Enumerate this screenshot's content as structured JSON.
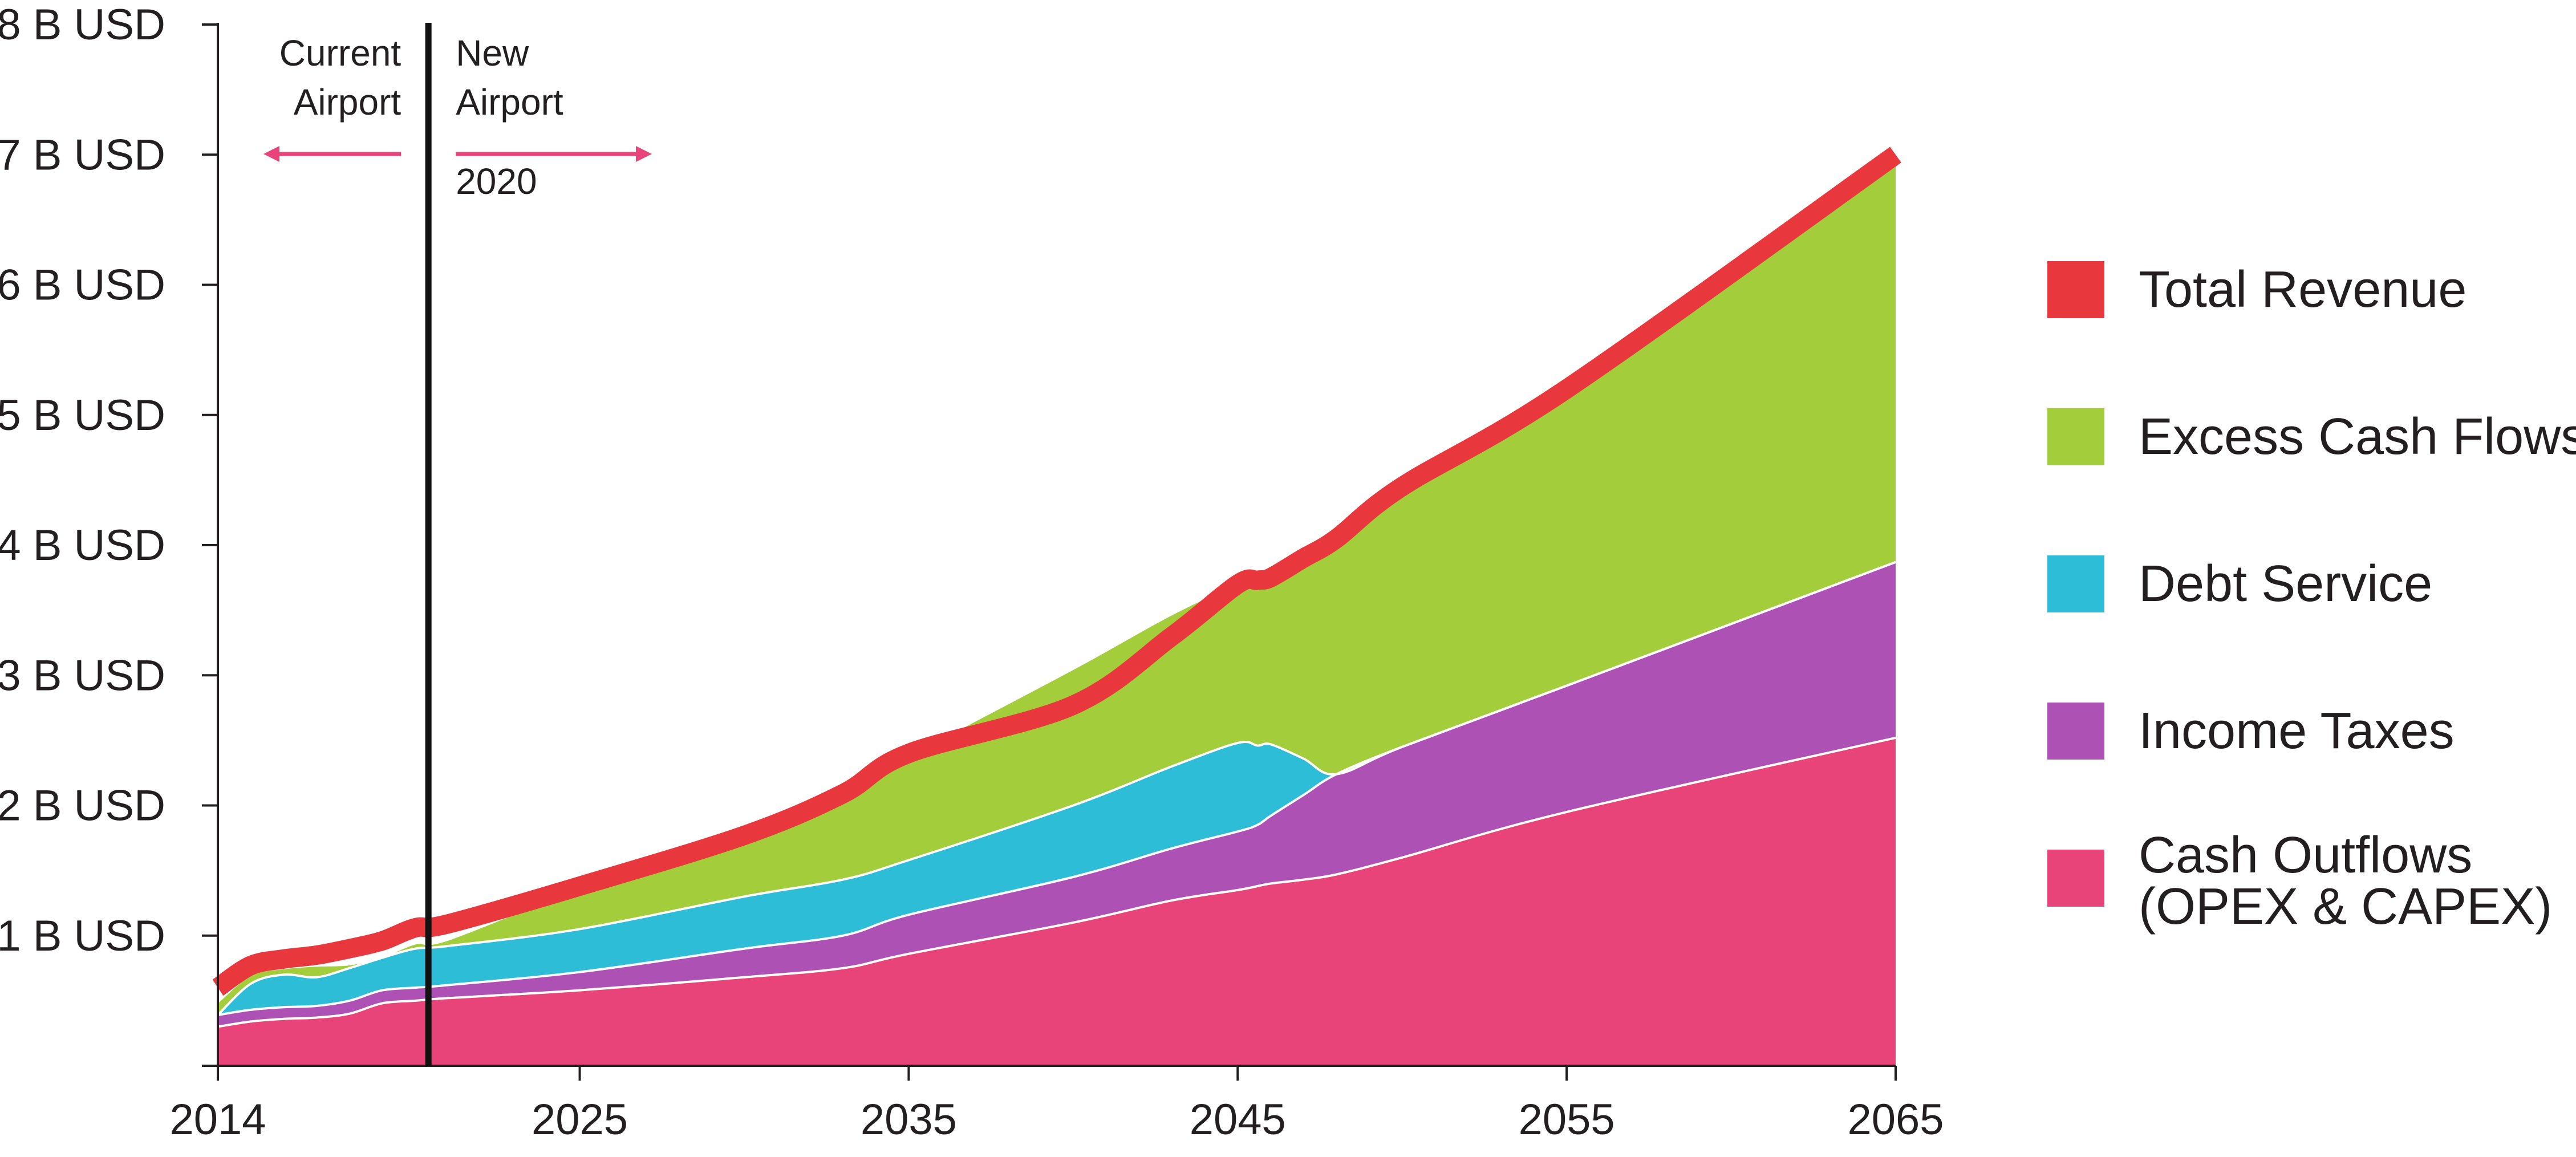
{
  "chart_data": {
    "type": "area",
    "x_ticks": [
      "2014",
      "2025",
      "2035",
      "2045",
      "2055",
      "2065"
    ],
    "y_ticks": [
      "1 B USD",
      "2 B USD",
      "3 B USD",
      "4 B USD",
      "5 B USD",
      "6 B USD",
      "7 B USD",
      "8 B USD"
    ],
    "xlim": [
      2014,
      2065
    ],
    "ylim": [
      0,
      8
    ],
    "x": [
      2014,
      2015,
      2016,
      2017,
      2018,
      2019,
      2020,
      2021,
      2025,
      2030,
      2033,
      2035,
      2040,
      2043,
      2045,
      2045.6,
      2046,
      2047,
      2048,
      2050,
      2055,
      2065
    ],
    "series": [
      {
        "name": "Cash Outflows (OPEX & CAPEX)",
        "color": "#e8447a",
        "values": [
          0.3,
          0.34,
          0.36,
          0.37,
          0.4,
          0.48,
          0.5,
          0.52,
          0.58,
          0.68,
          0.75,
          0.86,
          1.1,
          1.27,
          1.35,
          1.38,
          1.4,
          1.43,
          1.47,
          1.6,
          1.95,
          2.52
        ]
      },
      {
        "name": "Income Taxes",
        "color": "#ae51b4",
        "values": [
          0.09,
          0.09,
          0.09,
          0.09,
          0.1,
          0.1,
          0.1,
          0.1,
          0.14,
          0.22,
          0.25,
          0.3,
          0.35,
          0.4,
          0.45,
          0.47,
          0.52,
          0.65,
          0.77,
          0.85,
          0.97,
          1.35
        ]
      },
      {
        "name": "Debt Service",
        "color": "#2ebdd7",
        "values": [
          0.0,
          0.2,
          0.25,
          0.22,
          0.25,
          0.25,
          0.3,
          0.3,
          0.33,
          0.4,
          0.43,
          0.42,
          0.55,
          0.63,
          0.68,
          0.61,
          0.55,
          0.28,
          0.0,
          0.0,
          0.0,
          0.0
        ]
      },
      {
        "name": "Excess Cash Flows",
        "color": "#a3cd3b",
        "values": [
          0.1,
          0.07,
          0.05,
          0.09,
          0.03,
          0.01,
          0.04,
          0.05,
          0.31,
          0.45,
          0.64,
          0.8,
          1.05,
          1.17,
          1.22,
          1.26,
          1.27,
          1.52,
          1.79,
          2.0,
          2.28,
          3.05
        ]
      },
      {
        "name": "Total Revenue",
        "color": "#e8383d",
        "values": [
          0.6,
          0.77,
          0.82,
          0.85,
          0.9,
          0.96,
          1.06,
          1.09,
          1.38,
          1.77,
          2.09,
          2.4,
          2.77,
          3.3,
          3.7,
          3.73,
          3.75,
          3.9,
          4.05,
          4.45,
          5.2,
          7.0
        ]
      }
    ],
    "annotations": {
      "current_airport": "Current\nAirport",
      "new_airport": "New\nAirport",
      "year": "2020"
    },
    "divider_year": 2020.4,
    "legend_placement": "right",
    "grid": false
  }
}
